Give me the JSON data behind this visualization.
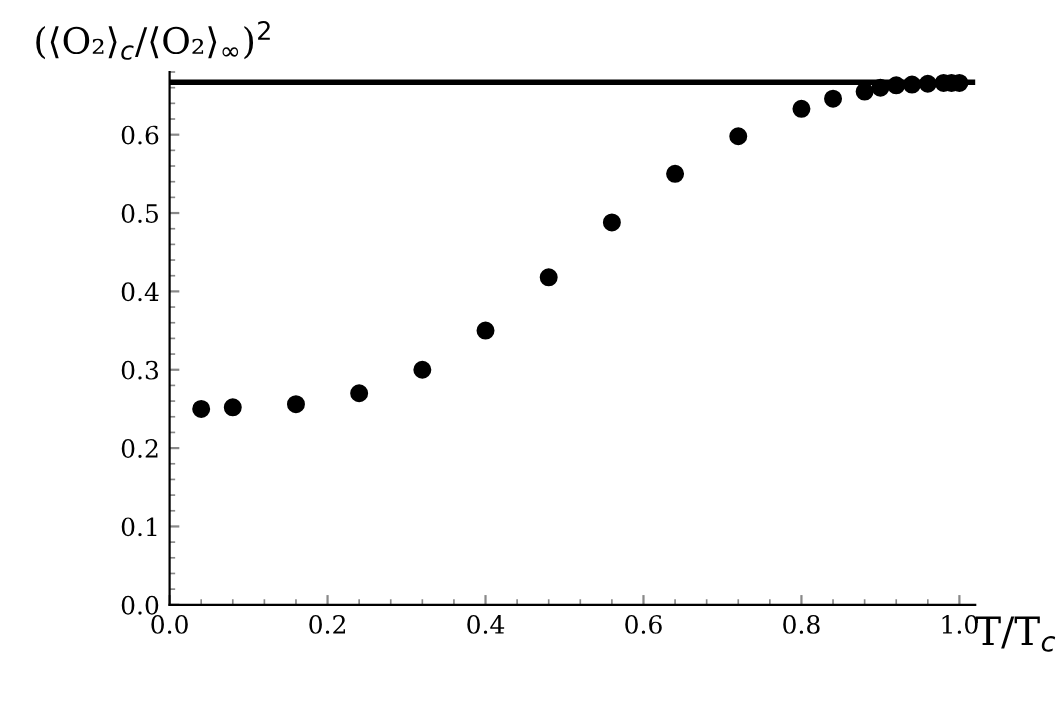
{
  "chart_data": {
    "type": "scatter",
    "xlabel": "T/T$_{c}$",
    "ylabel": "(⟨O₂⟩$_{c}$/⟨O₂⟩$_{∞}$)$^{2}$",
    "x": [
      0.04,
      0.08,
      0.16,
      0.24,
      0.32,
      0.4,
      0.48,
      0.56,
      0.64,
      0.72,
      0.8,
      0.84,
      0.88,
      0.9,
      0.92,
      0.94,
      0.96,
      0.98,
      0.99,
      1.0
    ],
    "series": [
      {
        "color": "#000000",
        "values": [
          0.25,
          0.252,
          0.256,
          0.27,
          0.3,
          0.35,
          0.418,
          0.488,
          0.55,
          0.598,
          0.633,
          0.646,
          0.655,
          0.66,
          0.663,
          0.664,
          0.665,
          0.666,
          0.666,
          0.666
        ]
      }
    ],
    "ref_lines": [
      {
        "axis": "y",
        "value": 0.667,
        "color": "#000000"
      }
    ],
    "xlim": [
      0,
      1.02
    ],
    "ylim": [
      0,
      0.68
    ],
    "xticks": [
      {
        "value": 0,
        "label": "0.0"
      },
      {
        "value": 0.2,
        "label": "0.2"
      },
      {
        "value": 0.4,
        "label": "0.4"
      },
      {
        "value": 0.6,
        "label": "0.6"
      },
      {
        "value": 0.8,
        "label": "0.8"
      },
      {
        "value": 1,
        "label": "1.0"
      }
    ],
    "yticks": [
      {
        "value": 0,
        "label": "0.0"
      },
      {
        "value": 0.1,
        "label": "0.1"
      },
      {
        "value": 0.2,
        "label": "0.2"
      },
      {
        "value": 0.3,
        "label": "0.3"
      },
      {
        "value": 0.4,
        "label": "0.4"
      },
      {
        "value": 0.5,
        "label": "0.5"
      },
      {
        "value": 0.6,
        "label": "0.6"
      }
    ],
    "marker": "circle",
    "grid": false,
    "legend": false
  }
}
